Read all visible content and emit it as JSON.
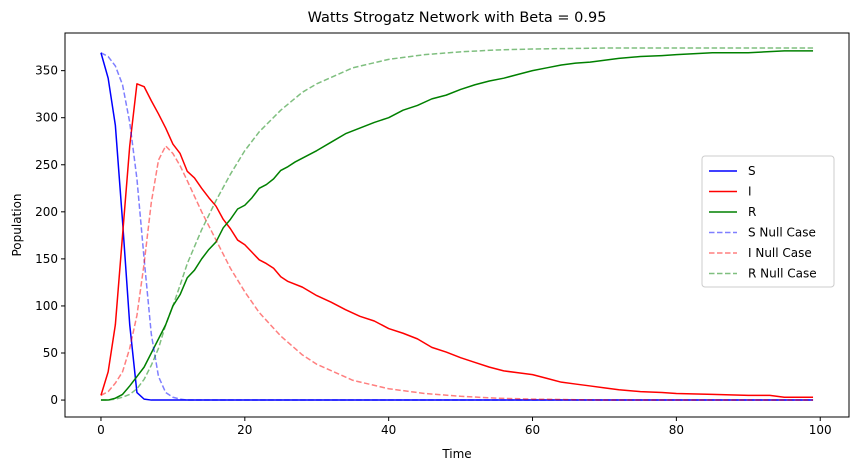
{
  "chart_data": {
    "type": "line",
    "title": "Watts Strogatz Network with Beta = 0.95",
    "xlabel": "Time",
    "ylabel": "Population",
    "xlim": [
      -5,
      104
    ],
    "ylim": [
      -18,
      390
    ],
    "xticks": [
      0,
      20,
      40,
      60,
      80,
      100
    ],
    "yticks": [
      0,
      50,
      100,
      150,
      200,
      250,
      300,
      350
    ],
    "grid": false,
    "legend_position": "center-right",
    "series": [
      {
        "name": "S",
        "color": "#0000ff",
        "style": "solid",
        "opacity": 1,
        "x": [
          0,
          1,
          2,
          3,
          4,
          5,
          6,
          7,
          8,
          10,
          99
        ],
        "y": [
          369,
          342,
          292,
          190,
          80,
          8,
          1,
          0,
          0,
          0,
          0
        ]
      },
      {
        "name": "I",
        "color": "#ff0000",
        "style": "solid",
        "opacity": 1,
        "x": [
          0,
          1,
          2,
          3,
          4,
          5,
          6,
          7,
          8,
          9,
          10,
          11,
          12,
          13,
          14,
          15,
          16,
          17,
          18,
          19,
          20,
          21,
          22,
          23,
          24,
          25,
          26,
          28,
          30,
          32,
          34,
          36,
          38,
          40,
          42,
          44,
          46,
          48,
          50,
          52,
          54,
          56,
          58,
          60,
          62,
          64,
          66,
          68,
          70,
          72,
          75,
          78,
          80,
          85,
          90,
          93,
          95,
          99
        ],
        "y": [
          5,
          30,
          80,
          175,
          270,
          336,
          333,
          318,
          304,
          289,
          272,
          262,
          243,
          236,
          225,
          215,
          206,
          192,
          182,
          170,
          165,
          157,
          149,
          145,
          140,
          131,
          126,
          120,
          111,
          104,
          96,
          89,
          84,
          76,
          71,
          65,
          56,
          51,
          45,
          40,
          35,
          31,
          29,
          27,
          23,
          19,
          17,
          15,
          13,
          11,
          9,
          8,
          7,
          6,
          5,
          5,
          3,
          3
        ]
      },
      {
        "name": "R",
        "color": "#008000",
        "style": "solid",
        "opacity": 1,
        "x": [
          0,
          1,
          2,
          3,
          4,
          5,
          6,
          7,
          8,
          9,
          10,
          11,
          12,
          13,
          14,
          15,
          16,
          17,
          18,
          19,
          20,
          21,
          22,
          23,
          24,
          25,
          26,
          27,
          28,
          30,
          32,
          34,
          36,
          38,
          40,
          42,
          44,
          46,
          48,
          50,
          52,
          54,
          56,
          58,
          60,
          62,
          64,
          66,
          68,
          70,
          72,
          75,
          78,
          80,
          85,
          90,
          95,
          99
        ],
        "y": [
          0,
          0,
          2,
          6,
          15,
          25,
          35,
          50,
          65,
          80,
          100,
          112,
          130,
          138,
          150,
          160,
          168,
          183,
          192,
          203,
          207,
          215,
          225,
          229,
          235,
          244,
          248,
          253,
          257,
          265,
          274,
          283,
          289,
          295,
          300,
          308,
          313,
          320,
          324,
          330,
          335,
          339,
          342,
          346,
          350,
          353,
          356,
          358,
          359,
          361,
          363,
          365,
          366,
          367,
          369,
          369,
          371,
          371
        ]
      },
      {
        "name": "S Null Case",
        "color": "#0000ff",
        "style": "dashed",
        "opacity": 0.5,
        "x": [
          0,
          1,
          2,
          3,
          4,
          5,
          6,
          7,
          8,
          9,
          10,
          11,
          12,
          13,
          99
        ],
        "y": [
          369,
          365,
          355,
          335,
          295,
          235,
          150,
          70,
          25,
          8,
          3,
          1,
          0,
          0,
          0
        ]
      },
      {
        "name": "I Null Case",
        "color": "#ff0000",
        "style": "dashed",
        "opacity": 0.5,
        "x": [
          0,
          1,
          2,
          3,
          4,
          5,
          6,
          7,
          8,
          9,
          10,
          11,
          12,
          14,
          16,
          18,
          20,
          22,
          25,
          28,
          30,
          35,
          40,
          45,
          50,
          55,
          60,
          70,
          80,
          99
        ],
        "y": [
          5,
          9,
          18,
          30,
          55,
          90,
          145,
          210,
          255,
          270,
          262,
          249,
          233,
          200,
          170,
          140,
          115,
          93,
          68,
          48,
          38,
          21,
          12,
          7,
          4,
          2,
          1,
          0,
          0,
          0
        ]
      },
      {
        "name": "R Null Case",
        "color": "#008000",
        "style": "dashed",
        "opacity": 0.5,
        "x": [
          0,
          1,
          2,
          3,
          4,
          5,
          6,
          7,
          8,
          9,
          10,
          11,
          12,
          14,
          16,
          18,
          20,
          22,
          25,
          28,
          30,
          35,
          40,
          45,
          50,
          55,
          60,
          70,
          80,
          99
        ],
        "y": [
          0,
          0,
          1,
          3,
          6,
          12,
          22,
          37,
          55,
          80,
          100,
          122,
          145,
          181,
          212,
          240,
          265,
          285,
          308,
          327,
          336,
          353,
          362,
          367,
          370,
          372,
          373,
          374,
          374,
          374
        ]
      }
    ]
  }
}
